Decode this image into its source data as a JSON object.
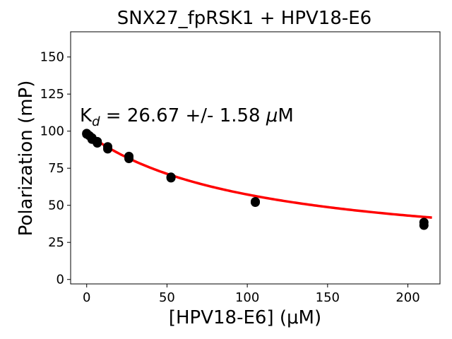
{
  "chart_data": {
    "type": "scatter",
    "title": "SNX27_fpRSK1 + HPV18-E6",
    "xlabel": "[HPV18-E6] (μM)",
    "ylabel": "Polarization (mP)",
    "xlim": [
      -10,
      220
    ],
    "ylim": [
      -3,
      167
    ],
    "xticks": [
      0,
      50,
      100,
      150,
      200
    ],
    "yticks": [
      0,
      25,
      50,
      75,
      100,
      125,
      150
    ],
    "annotation": {
      "k": "K",
      "sub": "d",
      "rest": " = 26.67 +/- 1.58 ",
      "mu": "μ",
      "unit": "M"
    },
    "points": [
      {
        "x": 0,
        "y": 98.5
      },
      {
        "x": 0,
        "y": 98.0
      },
      {
        "x": 1.6,
        "y": 97.0
      },
      {
        "x": 3.3,
        "y": 95.5
      },
      {
        "x": 3.3,
        "y": 94.5
      },
      {
        "x": 6.6,
        "y": 93.0
      },
      {
        "x": 6.6,
        "y": 92.0
      },
      {
        "x": 13.1,
        "y": 89.5
      },
      {
        "x": 13.1,
        "y": 88.0
      },
      {
        "x": 26.3,
        "y": 83.0
      },
      {
        "x": 26.3,
        "y": 81.5
      },
      {
        "x": 52.5,
        "y": 69.0
      },
      {
        "x": 52.5,
        "y": 68.5
      },
      {
        "x": 105,
        "y": 52.5
      },
      {
        "x": 105,
        "y": 52.0
      },
      {
        "x": 210,
        "y": 38.5
      },
      {
        "x": 210,
        "y": 36.5
      }
    ],
    "fit": {
      "x_range": [
        0,
        215
      ],
      "color": "#ff0000"
    },
    "point_color": "#000000"
  }
}
